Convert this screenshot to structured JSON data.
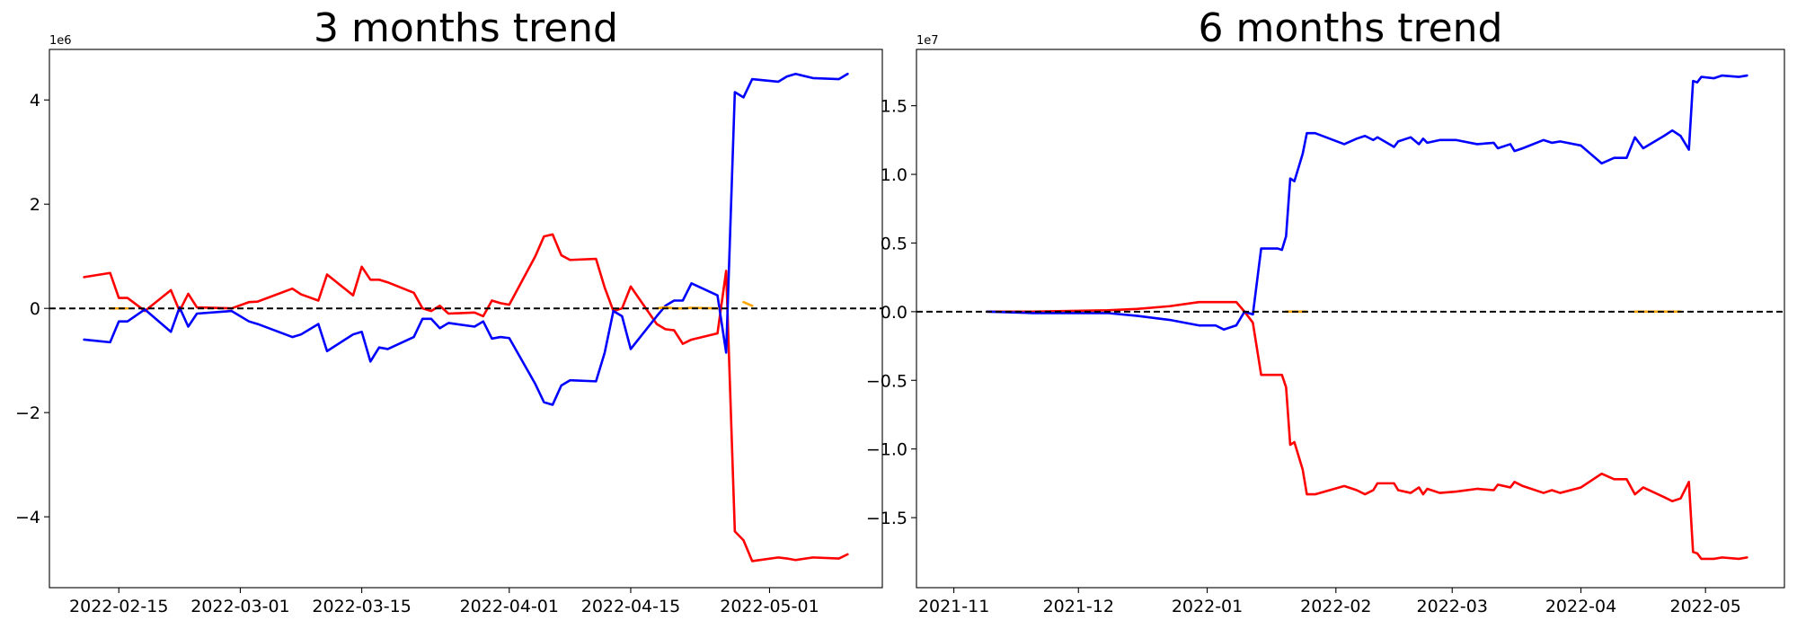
{
  "chart_data": [
    {
      "type": "line",
      "title": "3 months trend",
      "y_offset_label": "1e6",
      "x": [
        "2022-02-11",
        "2022-02-14",
        "2022-02-15",
        "2022-02-16",
        "2022-02-18",
        "2022-02-21",
        "2022-02-22",
        "2022-02-23",
        "2022-02-24",
        "2022-02-28",
        "2022-03-02",
        "2022-03-03",
        "2022-03-07",
        "2022-03-08",
        "2022-03-10",
        "2022-03-11",
        "2022-03-14",
        "2022-03-15",
        "2022-03-16",
        "2022-03-17",
        "2022-03-18",
        "2022-03-21",
        "2022-03-22",
        "2022-03-23",
        "2022-03-24",
        "2022-03-25",
        "2022-03-28",
        "2022-03-29",
        "2022-03-30",
        "2022-03-31",
        "2022-04-01",
        "2022-04-04",
        "2022-04-05",
        "2022-04-06",
        "2022-04-07",
        "2022-04-08",
        "2022-04-11",
        "2022-04-12",
        "2022-04-13",
        "2022-04-14",
        "2022-04-15",
        "2022-04-18",
        "2022-04-19",
        "2022-04-20",
        "2022-04-21",
        "2022-04-22",
        "2022-04-25",
        "2022-04-26",
        "2022-04-27",
        "2022-04-28",
        "2022-04-29",
        "2022-05-02",
        "2022-05-03",
        "2022-05-04",
        "2022-05-06",
        "2022-05-09",
        "2022-05-10"
      ],
      "series": [
        {
          "color": "#ff0000",
          "values": [
            0.6,
            0.68,
            0.2,
            0.2,
            -0.05,
            0.35,
            -0.05,
            0.28,
            0.02,
            0,
            0.12,
            0.13,
            0.38,
            0.27,
            0.15,
            0.65,
            0.25,
            0.8,
            0.55,
            0.55,
            0.5,
            0.3,
            0,
            -0.05,
            0.05,
            -0.1,
            -0.08,
            -0.15,
            0.15,
            0.1,
            0.07,
            1.0,
            1.38,
            1.42,
            1.02,
            0.93,
            0.95,
            0.4,
            -0.05,
            0,
            0.42,
            -0.3,
            -0.4,
            -0.42,
            -0.68,
            -0.6,
            -0.48,
            0.72,
            -4.28,
            -4.45,
            -4.85,
            -4.78,
            -4.8,
            -4.83,
            -4.78,
            -4.8,
            -4.72
          ]
        },
        {
          "color": "#0000ff",
          "values": [
            -0.6,
            -0.65,
            -0.25,
            -0.25,
            -0.02,
            -0.45,
            0.02,
            -0.35,
            -0.1,
            -0.05,
            -0.25,
            -0.3,
            -0.55,
            -0.5,
            -0.3,
            -0.82,
            -0.5,
            -0.45,
            -1.02,
            -0.75,
            -0.78,
            -0.55,
            -0.2,
            -0.2,
            -0.38,
            -0.28,
            -0.35,
            -0.25,
            -0.58,
            -0.55,
            -0.57,
            -1.45,
            -1.8,
            -1.85,
            -1.48,
            -1.38,
            -1.4,
            -0.85,
            -0.05,
            -0.15,
            -0.78,
            -0.15,
            0.05,
            0.15,
            0.15,
            0.48,
            0.25,
            -0.85,
            4.15,
            4.05,
            4.4,
            4.35,
            4.45,
            4.5,
            4.42,
            4.4,
            4.5
          ]
        },
        {
          "color": "#ffa500",
          "values": [
            null,
            0,
            0,
            0,
            null,
            null,
            null,
            null,
            null,
            null,
            null,
            null,
            null,
            null,
            null,
            null,
            null,
            null,
            null,
            null,
            null,
            null,
            null,
            null,
            null,
            null,
            null,
            null,
            null,
            null,
            null,
            null,
            null,
            null,
            null,
            null,
            null,
            null,
            null,
            null,
            null,
            0,
            0.02,
            0,
            0,
            0.01,
            0,
            null,
            null,
            0.12,
            0.05,
            null,
            null,
            null,
            null,
            null,
            null
          ]
        }
      ],
      "hline": 0,
      "hline_color": "#000000",
      "xlim": [
        "2022-02-07",
        "2022-05-14"
      ],
      "xticks": [
        "2022-02-15",
        "2022-03-01",
        "2022-03-15",
        "2022-04-01",
        "2022-04-15",
        "2022-05-01"
      ],
      "ylim": [
        -5.36,
        4.97
      ],
      "yticks": [
        {
          "value": -4,
          "label": "−4"
        },
        {
          "value": -2,
          "label": "−2"
        },
        0,
        2,
        4
      ]
    },
    {
      "type": "line",
      "title": "6 months trend",
      "y_offset_label": "1e7",
      "x": [
        "2021-11-09",
        "2021-11-20",
        "2021-12-08",
        "2021-12-15",
        "2021-12-23",
        "2021-12-30",
        "2022-01-03",
        "2022-01-05",
        "2022-01-08",
        "2022-01-10",
        "2022-01-12",
        "2022-01-14",
        "2022-01-18",
        "2022-01-19",
        "2022-01-20",
        "2022-01-21",
        "2022-01-22",
        "2022-01-24",
        "2022-01-25",
        "2022-01-27",
        "2022-02-03",
        "2022-02-06",
        "2022-02-08",
        "2022-02-10",
        "2022-02-11",
        "2022-02-15",
        "2022-02-16",
        "2022-02-19",
        "2022-02-21",
        "2022-02-22",
        "2022-02-23",
        "2022-02-26",
        "2022-03-02",
        "2022-03-07",
        "2022-03-11",
        "2022-03-12",
        "2022-03-15",
        "2022-03-16",
        "2022-03-18",
        "2022-03-23",
        "2022-03-25",
        "2022-03-27",
        "2022-04-01",
        "2022-04-06",
        "2022-04-09",
        "2022-04-12",
        "2022-04-14",
        "2022-04-16",
        "2022-04-21",
        "2022-04-23",
        "2022-04-25",
        "2022-04-27",
        "2022-04-28",
        "2022-04-29",
        "2022-04-30",
        "2022-05-03",
        "2022-05-05",
        "2022-05-09",
        "2022-05-11"
      ],
      "series": [
        {
          "color": "#ff0000",
          "values": [
            0,
            0,
            0.01,
            0.02,
            0.04,
            0.07,
            0.07,
            0.07,
            0.07,
            0,
            -0.08,
            -0.46,
            -0.46,
            -0.46,
            -0.55,
            -0.97,
            -0.95,
            -1.15,
            -1.33,
            -1.33,
            -1.27,
            -1.3,
            -1.33,
            -1.3,
            -1.25,
            -1.25,
            -1.3,
            -1.32,
            -1.28,
            -1.33,
            -1.29,
            -1.32,
            -1.31,
            -1.29,
            -1.3,
            -1.26,
            -1.28,
            -1.24,
            -1.27,
            -1.32,
            -1.3,
            -1.32,
            -1.28,
            -1.18,
            -1.22,
            -1.22,
            -1.33,
            -1.28,
            -1.35,
            -1.38,
            -1.36,
            -1.24,
            -1.75,
            -1.76,
            -1.8,
            -1.8,
            -1.79,
            -1.8,
            -1.79
          ]
        },
        {
          "color": "#0000ff",
          "values": [
            0,
            -0.01,
            -0.01,
            -0.03,
            -0.06,
            -0.1,
            -0.1,
            -0.13,
            -0.1,
            0,
            -0.02,
            0.46,
            0.46,
            0.45,
            0.55,
            0.97,
            0.95,
            1.15,
            1.3,
            1.3,
            1.22,
            1.26,
            1.28,
            1.25,
            1.27,
            1.2,
            1.24,
            1.27,
            1.22,
            1.26,
            1.23,
            1.25,
            1.25,
            1.22,
            1.23,
            1.19,
            1.22,
            1.17,
            1.19,
            1.25,
            1.23,
            1.24,
            1.21,
            1.08,
            1.12,
            1.12,
            1.27,
            1.19,
            1.28,
            1.32,
            1.28,
            1.18,
            1.68,
            1.67,
            1.71,
            1.7,
            1.72,
            1.71,
            1.72
          ]
        },
        {
          "color": "#ffa500",
          "values": [
            null,
            null,
            null,
            null,
            null,
            null,
            null,
            null,
            null,
            null,
            null,
            null,
            null,
            null,
            0,
            0,
            0,
            0,
            0,
            null,
            null,
            null,
            null,
            null,
            null,
            null,
            null,
            null,
            null,
            null,
            null,
            null,
            null,
            null,
            null,
            null,
            null,
            null,
            null,
            null,
            null,
            null,
            null,
            null,
            null,
            null,
            0,
            0,
            0,
            0,
            0,
            null,
            null,
            null,
            null,
            null,
            null,
            null,
            null
          ]
        }
      ],
      "hline": 0,
      "hline_color": "#000000",
      "xlim": [
        "2021-10-23",
        "2022-05-20"
      ],
      "xticks": [
        "2021-11",
        "2021-12",
        "2022-01",
        "2022-02",
        "2022-03",
        "2022-04",
        "2022-05"
      ],
      "ylim": [
        -2.01,
        1.91
      ],
      "yticks": [
        {
          "value": -1.5,
          "label": "−1.5"
        },
        {
          "value": -1.0,
          "label": "−1.0"
        },
        {
          "value": -0.5,
          "label": "−0.5"
        },
        {
          "value": 0,
          "label": "0.0"
        },
        0.5,
        {
          "value": 1.0,
          "label": "1.0"
        },
        1.5
      ]
    }
  ]
}
